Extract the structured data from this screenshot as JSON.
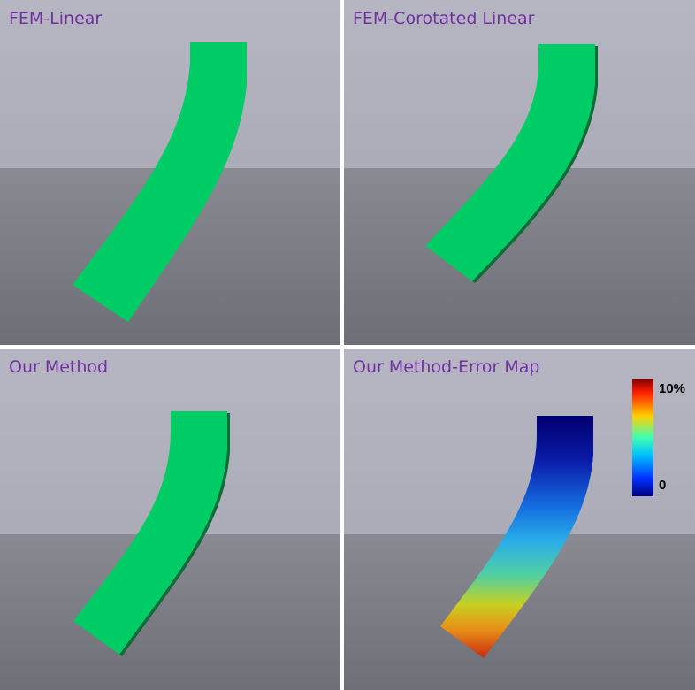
{
  "panels": [
    {
      "title": "FEM-Linear"
    },
    {
      "title": "FEM-Corotated Linear"
    },
    {
      "title": "Our Method"
    },
    {
      "title": "Our Method-Error Map"
    }
  ],
  "legend": {
    "max_label": "10%",
    "min_label": "0"
  },
  "colors": {
    "beam_green": "#00cc66",
    "title_purple": "#7030a0",
    "sky": "#b4b4c0",
    "floor": "#72727a",
    "error_low": "#000080",
    "error_high": "#cc0000"
  }
}
